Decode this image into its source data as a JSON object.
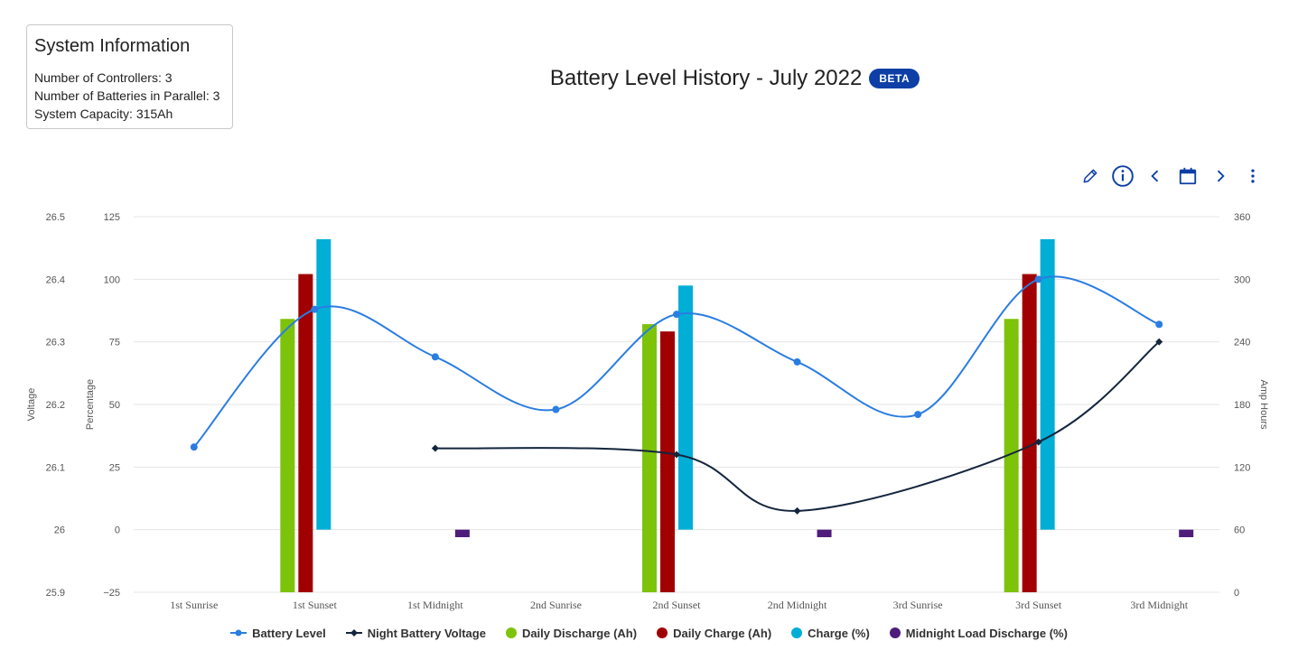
{
  "info": {
    "title": "System Information",
    "controllers": "Number of Controllers: 3",
    "batteries": "Number of Batteries in Parallel: 3",
    "capacity": "System Capacity: 315Ah"
  },
  "header": {
    "title": "Battery Level History - July 2022",
    "badge": "BETA"
  },
  "toolbar": {
    "icons": [
      "pencil-icon",
      "info-icon",
      "chevron-left-icon",
      "calendar-icon",
      "chevron-right-icon",
      "more-vertical-icon"
    ],
    "accent": "#0d3fa6"
  },
  "chart_data": {
    "type": "bar",
    "categories": [
      "1st Sunrise",
      "1st Sunset",
      "1st Midnight",
      "2nd Sunrise",
      "2nd Sunset",
      "2nd Midnight",
      "3rd Sunrise",
      "3rd Sunset",
      "3rd Midnight"
    ],
    "axes": {
      "voltage": {
        "label": "Voltage",
        "min": 25.9,
        "max": 26.5,
        "ticks": [
          "26.5",
          "26.4",
          "26.3",
          "26.2",
          "26.1",
          "26",
          "25.9"
        ]
      },
      "percentage": {
        "label": "Percentage",
        "min": -25,
        "max": 125,
        "ticks": [
          "125",
          "100",
          "75",
          "50",
          "25",
          "0",
          "−25"
        ]
      },
      "amp_hours": {
        "label": "Amp Hours",
        "min": 0,
        "max": 360,
        "ticks": [
          "360",
          "300",
          "240",
          "180",
          "120",
          "60",
          "0"
        ]
      }
    },
    "grid": true,
    "legend_position": "bottom",
    "series": [
      {
        "name": "Battery Level",
        "kind": "line",
        "axis": "percentage",
        "color": "#2a7de1",
        "values": [
          33,
          88,
          69,
          48,
          86,
          67,
          46,
          100,
          82
        ]
      },
      {
        "name": "Night Battery Voltage",
        "kind": "line",
        "axis": "voltage",
        "color": "#14253d",
        "values": [
          null,
          null,
          26.13,
          null,
          26.12,
          26.03,
          null,
          26.14,
          26.3
        ]
      },
      {
        "name": "Daily Discharge (Ah)",
        "kind": "bar",
        "axis": "amp_hours",
        "color": "#7dc30a",
        "values": [
          null,
          262,
          null,
          null,
          257,
          null,
          null,
          262,
          null
        ]
      },
      {
        "name": "Daily Charge (Ah)",
        "kind": "bar",
        "axis": "amp_hours",
        "color": "#a00000",
        "values": [
          null,
          305,
          null,
          null,
          250,
          null,
          null,
          305,
          null
        ]
      },
      {
        "name": "Charge (%)",
        "kind": "bar",
        "axis": "percentage",
        "color": "#00aed6",
        "values": [
          null,
          116,
          null,
          null,
          97.5,
          null,
          null,
          116,
          null
        ]
      },
      {
        "name": "Midnight Load Discharge (%)",
        "kind": "bar",
        "axis": "percentage",
        "color": "#4e1c7a",
        "values": [
          null,
          null,
          -3,
          null,
          null,
          -3,
          null,
          null,
          -3
        ]
      }
    ]
  }
}
